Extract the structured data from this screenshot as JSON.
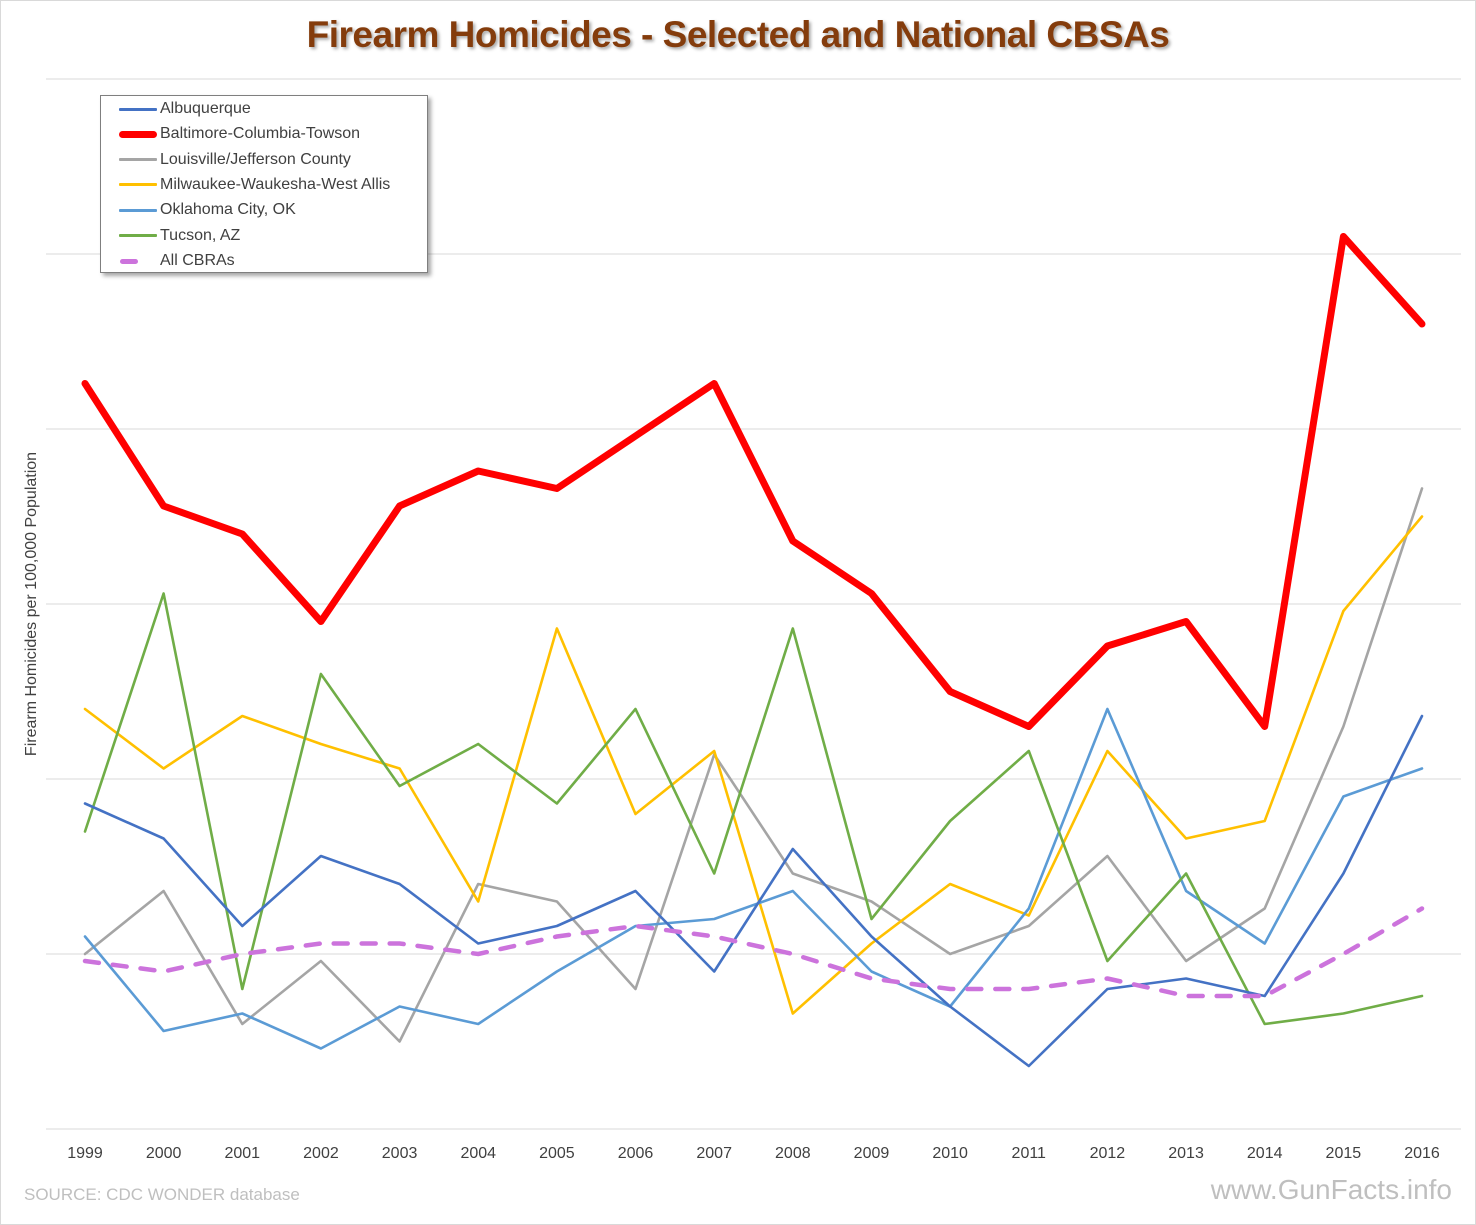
{
  "chart_data": {
    "type": "line",
    "title": "Firearm Homicides - Selected and National CBSAs",
    "xlabel": "",
    "ylabel": "Firearm Homicides per 100,000 Population",
    "ylim": [
      0,
      30
    ],
    "y_gridlines": [
      0,
      5,
      10,
      15,
      20,
      25,
      30
    ],
    "y_tick_labels_shown": false,
    "grid": true,
    "legend_position": "top-left",
    "x": [
      "1999",
      "2000",
      "2001",
      "2002",
      "2003",
      "2004",
      "2005",
      "2006",
      "2007",
      "2008",
      "2009",
      "2010",
      "2011",
      "2012",
      "2013",
      "2014",
      "2015",
      "2016"
    ],
    "series": [
      {
        "name": "Albuquerque",
        "color": "#4472c4",
        "style": "solid",
        "width": "thin",
        "values": [
          9.3,
          8.3,
          5.8,
          7.8,
          7.0,
          5.3,
          5.8,
          6.8,
          4.5,
          8.0,
          5.5,
          3.5,
          1.8,
          4.0,
          4.3,
          3.8,
          7.3,
          11.8
        ]
      },
      {
        "name": "Baltimore-Columbia-Towson",
        "color": "#ff0000",
        "style": "solid",
        "width": "thick",
        "values": [
          21.3,
          17.8,
          17.0,
          14.5,
          17.8,
          18.8,
          18.3,
          19.8,
          21.3,
          16.8,
          15.3,
          12.5,
          11.5,
          13.8,
          14.5,
          11.5,
          25.5,
          23.0
        ]
      },
      {
        "name": "Louisville/Jefferson County",
        "color": "#a5a5a5",
        "style": "solid",
        "width": "thin",
        "values": [
          5.0,
          6.8,
          3.0,
          4.8,
          2.5,
          7.0,
          6.5,
          4.0,
          10.7,
          7.3,
          6.5,
          5.0,
          5.8,
          7.8,
          4.8,
          6.3,
          11.5,
          18.3
        ]
      },
      {
        "name": "Milwaukee-Waukesha-West Allis",
        "color": "#ffc000",
        "style": "solid",
        "width": "thin",
        "values": [
          12.0,
          10.3,
          11.8,
          11.0,
          10.3,
          6.5,
          14.3,
          9.0,
          10.8,
          3.3,
          5.3,
          7.0,
          6.1,
          10.8,
          8.3,
          8.8,
          14.8,
          17.5
        ]
      },
      {
        "name": "Oklahoma City, OK",
        "color": "#5b9bd5",
        "style": "solid",
        "width": "thin",
        "values": [
          5.5,
          2.8,
          3.3,
          2.3,
          3.5,
          3.0,
          4.5,
          5.8,
          6.0,
          6.8,
          4.5,
          3.5,
          6.3,
          12.0,
          6.8,
          5.3,
          9.5,
          10.3
        ]
      },
      {
        "name": "Tucson, AZ",
        "color": "#70ad47",
        "style": "solid",
        "width": "thin",
        "values": [
          8.5,
          15.3,
          4.0,
          13.0,
          9.8,
          11.0,
          9.3,
          12.0,
          7.3,
          14.3,
          6.0,
          8.8,
          10.8,
          4.8,
          7.3,
          3.0,
          3.3,
          3.8
        ]
      },
      {
        "name": "All CBRAs",
        "color": "#cc73dc",
        "style": "dashed",
        "width": "medium",
        "values": [
          4.8,
          4.5,
          5.0,
          5.3,
          5.3,
          5.0,
          5.5,
          5.8,
          5.5,
          5.0,
          4.3,
          4.0,
          4.0,
          4.3,
          3.8,
          3.8,
          5.0,
          6.3
        ]
      }
    ]
  },
  "footer": {
    "source": "SOURCE:  CDC WONDER database",
    "watermark": "www.GunFacts.info"
  },
  "colors": {
    "title": "#843c0c",
    "gridline": "#d9d9d9",
    "axis_text": "#404040",
    "footer_text": "#bfbfbf"
  }
}
